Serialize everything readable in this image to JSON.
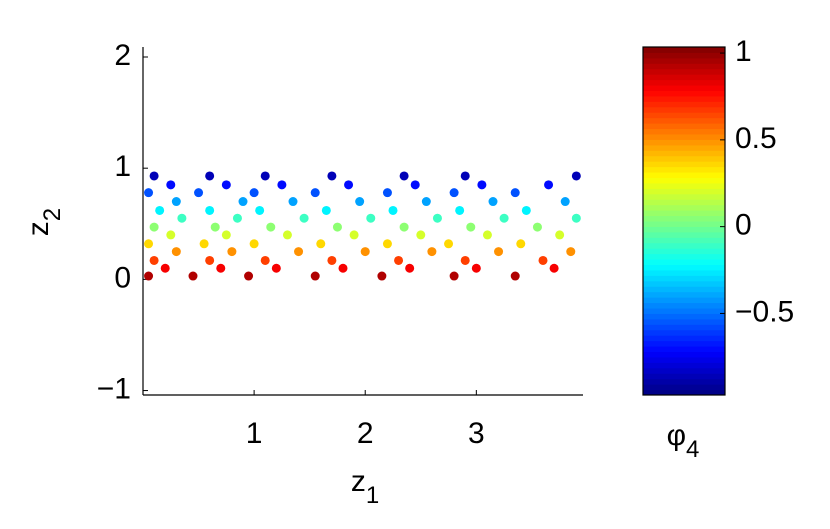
{
  "chart_data": {
    "type": "scatter",
    "xlabel": {
      "base": "z",
      "sub": "1"
    },
    "ylabel": {
      "base": "z",
      "sub": "2"
    },
    "colorbar_label": {
      "base": "φ",
      "sub": "4"
    },
    "colormap": "jet",
    "xlim": [
      0,
      3.96
    ],
    "xticks": [
      1,
      2,
      3
    ],
    "ylim": [
      -1.04,
      2.09
    ],
    "yticks": [
      {
        "value": -1,
        "label": "−1"
      },
      0,
      1,
      2
    ],
    "clim": [
      -0.97,
      1.035
    ],
    "cticks": [
      {
        "value": -0.5,
        "label": "−0.5"
      },
      0,
      0.5,
      1
    ],
    "series": [
      {
        "x": [
          0.05,
          0.45,
          0.95,
          1.55,
          2.15,
          2.8,
          3.35,
          0.2,
          0.7,
          1.2,
          1.8,
          2.4,
          3.0,
          3.7,
          0.1,
          0.6,
          1.1,
          1.7,
          2.3,
          2.9,
          3.6,
          0.3,
          0.8,
          1.4,
          2.0,
          2.6,
          3.2,
          3.85,
          0.05,
          0.55,
          1.0,
          1.6,
          2.2,
          2.75,
          3.4,
          0.25,
          0.75,
          1.3,
          1.9,
          2.5,
          3.1,
          3.75,
          0.1,
          0.65,
          1.15,
          1.75,
          2.35,
          2.95,
          3.55,
          0.35,
          0.85,
          1.45,
          2.05,
          2.65,
          3.25,
          3.9,
          0.15,
          0.6,
          1.05,
          1.65,
          2.25,
          2.85,
          3.45,
          0.3,
          0.9,
          1.35,
          1.95,
          2.55,
          3.15,
          3.8,
          0.05,
          0.5,
          1.0,
          1.55,
          2.2,
          2.8,
          3.35,
          0.25,
          0.75,
          1.25,
          1.85,
          2.45,
          3.05,
          3.65,
          0.1,
          0.6,
          1.1,
          1.7,
          2.35,
          2.9,
          3.9
        ],
        "y": [
          0.03,
          0.03,
          0.03,
          0.03,
          0.03,
          0.03,
          0.03,
          0.1,
          0.1,
          0.1,
          0.1,
          0.1,
          0.1,
          0.1,
          0.17,
          0.17,
          0.17,
          0.17,
          0.17,
          0.17,
          0.17,
          0.25,
          0.25,
          0.25,
          0.25,
          0.25,
          0.25,
          0.25,
          0.32,
          0.32,
          0.32,
          0.32,
          0.32,
          0.32,
          0.32,
          0.4,
          0.4,
          0.4,
          0.4,
          0.4,
          0.4,
          0.4,
          0.47,
          0.47,
          0.47,
          0.47,
          0.47,
          0.47,
          0.47,
          0.55,
          0.55,
          0.55,
          0.55,
          0.55,
          0.55,
          0.55,
          0.62,
          0.62,
          0.62,
          0.62,
          0.62,
          0.62,
          0.62,
          0.7,
          0.7,
          0.7,
          0.7,
          0.7,
          0.7,
          0.7,
          0.78,
          0.78,
          0.78,
          0.78,
          0.78,
          0.78,
          0.78,
          0.85,
          0.85,
          0.85,
          0.85,
          0.85,
          0.85,
          0.85,
          0.93,
          0.93,
          0.93,
          0.93,
          0.93,
          0.93,
          0.93
        ],
        "c": [
          0.94,
          0.94,
          0.94,
          0.94,
          0.94,
          0.94,
          0.94,
          0.8,
          0.8,
          0.8,
          0.8,
          0.8,
          0.8,
          0.8,
          0.66,
          0.66,
          0.66,
          0.66,
          0.66,
          0.66,
          0.66,
          0.5,
          0.5,
          0.5,
          0.5,
          0.5,
          0.5,
          0.5,
          0.36,
          0.36,
          0.36,
          0.36,
          0.36,
          0.36,
          0.36,
          0.2,
          0.2,
          0.2,
          0.2,
          0.2,
          0.2,
          0.2,
          0.06,
          0.06,
          0.06,
          0.06,
          0.06,
          0.06,
          0.06,
          -0.1,
          -0.1,
          -0.1,
          -0.1,
          -0.1,
          -0.1,
          -0.1,
          -0.24,
          -0.24,
          -0.24,
          -0.24,
          -0.24,
          -0.24,
          -0.24,
          -0.4,
          -0.4,
          -0.4,
          -0.4,
          -0.4,
          -0.4,
          -0.4,
          -0.56,
          -0.56,
          -0.56,
          -0.56,
          -0.56,
          -0.56,
          -0.56,
          -0.7,
          -0.7,
          -0.7,
          -0.7,
          -0.7,
          -0.7,
          -0.7,
          -0.86,
          -0.86,
          -0.86,
          -0.86,
          -0.86,
          -0.86,
          -0.86
        ]
      }
    ]
  }
}
